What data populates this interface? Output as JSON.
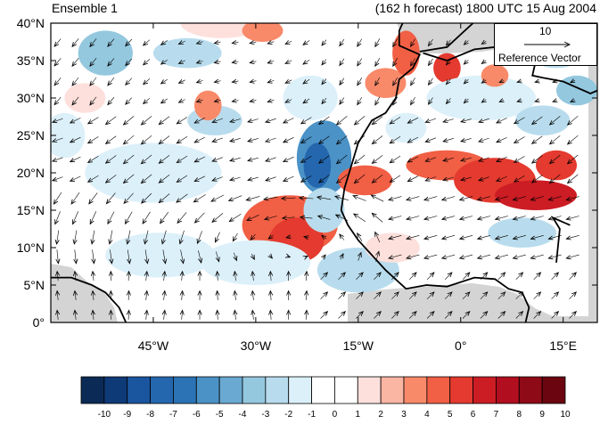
{
  "titles": {
    "left": "Ensemble 1",
    "right": "(162 h forecast) 1800 UTC 15 Aug 2004"
  },
  "reference_vector": {
    "magnitude": "10",
    "label": "Reference Vector"
  },
  "axes": {
    "lat_ticks": [
      "40°N",
      "35°N",
      "30°N",
      "25°N",
      "20°N",
      "15°N",
      "10°N",
      "5°N",
      "0°"
    ],
    "lon_ticks": [
      "45°W",
      "30°W",
      "15°W",
      "0°",
      "15°E"
    ]
  },
  "colorbar": {
    "labels": [
      "-10",
      "-9",
      "-8",
      "-7",
      "-6",
      "-5",
      "-4",
      "-3",
      "-2",
      "-1",
      "0",
      "1",
      "2",
      "3",
      "4",
      "5",
      "6",
      "7",
      "8",
      "9",
      "10"
    ],
    "colors": [
      "#0b2a55",
      "#0e3a78",
      "#1a55a0",
      "#2467ae",
      "#2b73b5",
      "#4b92c6",
      "#6aaad2",
      "#94c8df",
      "#b8dced",
      "#dcf0fa",
      "#ffffff",
      "#ffffff",
      "#fde0dc",
      "#fbb5a3",
      "#f88a6a",
      "#f15f45",
      "#e43a2f",
      "#cc1c24",
      "#b10e1f",
      "#8f0a17",
      "#6b0510"
    ]
  },
  "map": {
    "lon_range": [
      -60,
      20
    ],
    "lat_range": [
      0,
      40
    ],
    "land_color": "#d4d4d4",
    "coast_color": "#000000"
  }
}
